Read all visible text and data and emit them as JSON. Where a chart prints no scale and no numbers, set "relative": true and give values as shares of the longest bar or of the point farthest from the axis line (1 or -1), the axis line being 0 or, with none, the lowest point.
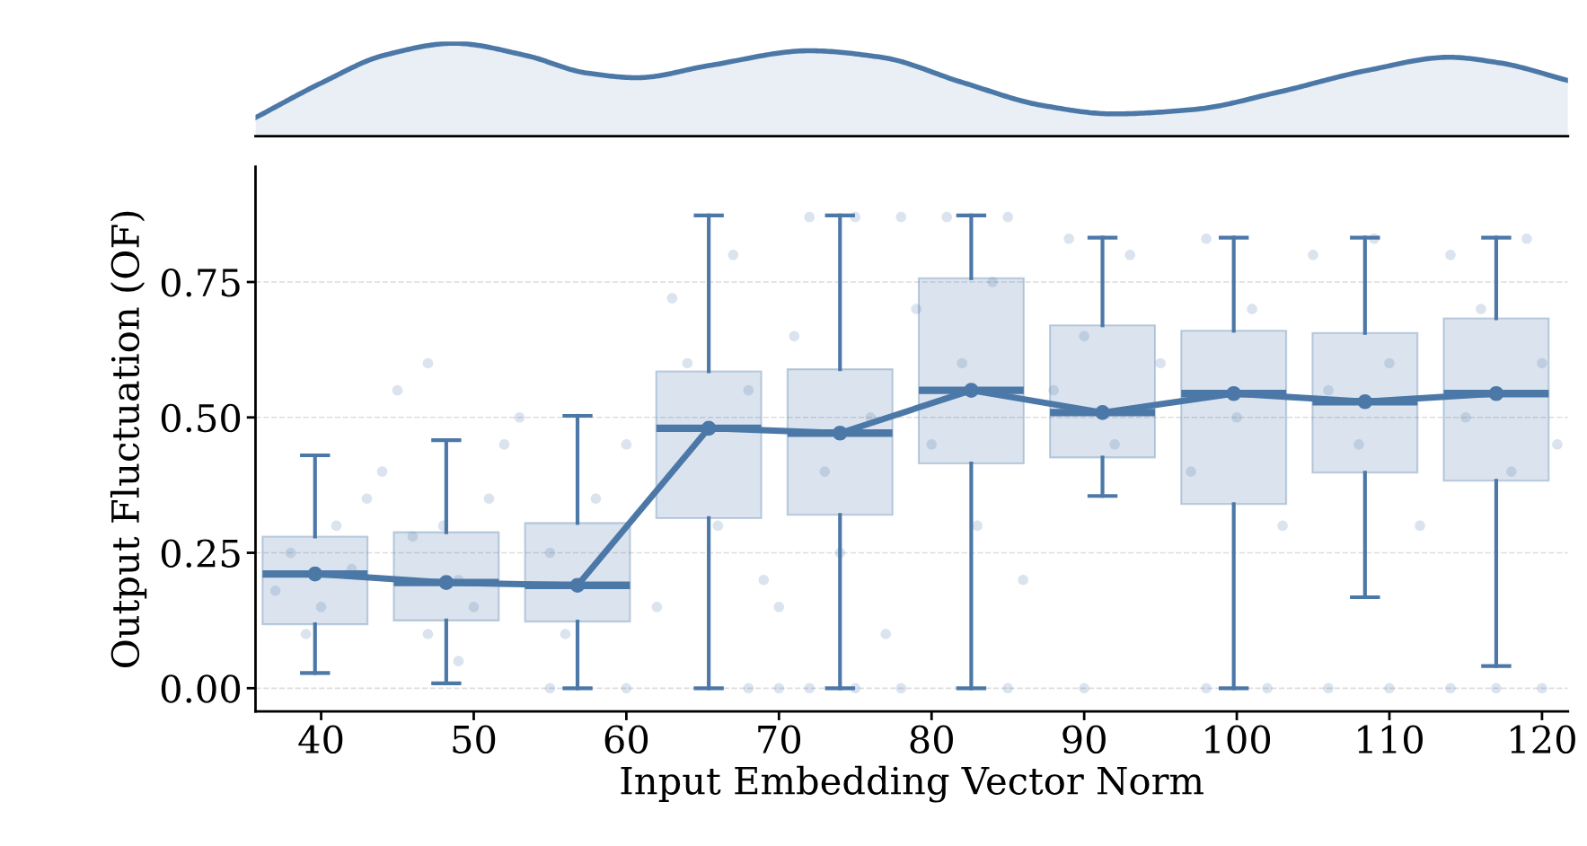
{
  "chart_data": [
    {
      "type": "area",
      "relative": true,
      "color": "#4c78a8",
      "x": [
        35.7,
        40.1,
        44.1,
        48.7,
        53.4,
        57.4,
        60.7,
        65.4,
        72,
        76.7,
        82,
        87.3,
        91.9,
        97.3,
        102.6,
        108.6,
        113.9,
        117.2,
        121.7
      ],
      "values": [
        0.2,
        0.58,
        0.87,
        1.0,
        0.87,
        0.68,
        0.63,
        0.76,
        0.92,
        0.85,
        0.58,
        0.33,
        0.24,
        0.29,
        0.47,
        0.71,
        0.85,
        0.79,
        0.6
      ],
      "xlim": [
        35.7,
        121.7
      ]
    },
    {
      "type": "box",
      "xlabel": "Input Embedding Vector Norm",
      "ylabel": "Output Fluctuation (OF)",
      "x": [
        39.6,
        48.2,
        56.8,
        65.4,
        74,
        82.6,
        91.2,
        99.8,
        108.4,
        117
      ],
      "color": "#4c78a8",
      "boxes": [
        {
          "low": 0.028,
          "q1": 0.118,
          "median": 0.211,
          "q3": 0.28,
          "high": 0.43
        },
        {
          "low": 0.009,
          "q1": 0.125,
          "median": 0.195,
          "q3": 0.288,
          "high": 0.458
        },
        {
          "low": 0,
          "q1": 0.123,
          "median": 0.19,
          "q3": 0.305,
          "high": 0.503
        },
        {
          "low": 0,
          "q1": 0.314,
          "median": 0.48,
          "q3": 0.585,
          "high": 0.873
        },
        {
          "low": 0,
          "q1": 0.32,
          "median": 0.471,
          "q3": 0.589,
          "high": 0.873
        },
        {
          "low": 0,
          "q1": 0.415,
          "median": 0.55,
          "q3": 0.757,
          "high": 0.873
        },
        {
          "low": 0.355,
          "q1": 0.426,
          "median": 0.509,
          "q3": 0.67,
          "high": 0.832
        },
        {
          "low": 0,
          "q1": 0.34,
          "median": 0.544,
          "q3": 0.66,
          "high": 0.832
        },
        {
          "low": 0.168,
          "q1": 0.398,
          "median": 0.529,
          "q3": 0.656,
          "high": 0.832
        },
        {
          "low": 0.041,
          "q1": 0.383,
          "median": 0.544,
          "q3": 0.683,
          "high": 0.832
        }
      ],
      "series": [
        {
          "type": "line",
          "color": "#4c78a8",
          "marker": "circle",
          "line_style": "solid",
          "x": [
            39.6,
            48.2,
            56.8,
            65.4,
            74,
            82.6,
            91.2,
            99.8,
            108.4,
            117
          ],
          "values": [
            0.211,
            0.195,
            0.19,
            0.48,
            0.471,
            0.55,
            0.509,
            0.544,
            0.529,
            0.544
          ]
        },
        {
          "type": "scatter",
          "color": "#4c78a8",
          "marker": "circle",
          "x": [
            37,
            38,
            40,
            41,
            42,
            39,
            43,
            44,
            45,
            46,
            47,
            48,
            49,
            50,
            51,
            52,
            47,
            49,
            53,
            55,
            56,
            58,
            60,
            62,
            63,
            64,
            66,
            67,
            68,
            69,
            70,
            71,
            72,
            73,
            74,
            75,
            76,
            77,
            78,
            79,
            80,
            81,
            82,
            83,
            84,
            85,
            86,
            88,
            89,
            90,
            92,
            93,
            95,
            97,
            98,
            100,
            101,
            103,
            105,
            106,
            108,
            109,
            110,
            112,
            114,
            115,
            116,
            118,
            119,
            120,
            121,
            55,
            60,
            68,
            70,
            72,
            75,
            78,
            85,
            90,
            98,
            102,
            106,
            110,
            114,
            117,
            120
          ],
          "values": [
            0.18,
            0.25,
            0.15,
            0.3,
            0.22,
            0.1,
            0.35,
            0.4,
            0.55,
            0.28,
            0.6,
            0.3,
            0.2,
            0.15,
            0.35,
            0.45,
            0.1,
            0.05,
            0.5,
            0.25,
            0.1,
            0.35,
            0.45,
            0.15,
            0.72,
            0.6,
            0.3,
            0.8,
            0.55,
            0.2,
            0.15,
            0.65,
            0.87,
            0.4,
            0.25,
            0.87,
            0.5,
            0.1,
            0.87,
            0.7,
            0.45,
            0.87,
            0.6,
            0.3,
            0.75,
            0.87,
            0.2,
            0.55,
            0.83,
            0.65,
            0.45,
            0.8,
            0.6,
            0.4,
            0.83,
            0.5,
            0.7,
            0.3,
            0.8,
            0.55,
            0.45,
            0.83,
            0.6,
            0.3,
            0.8,
            0.5,
            0.7,
            0.4,
            0.83,
            0.6,
            0.45,
            0,
            0,
            0,
            0,
            0,
            0,
            0,
            0,
            0,
            0,
            0,
            0,
            0,
            0,
            0,
            0
          ]
        }
      ],
      "xlim": [
        35.7,
        121.7
      ],
      "xticks": [
        40,
        50,
        60,
        70,
        80,
        90,
        100,
        110,
        120
      ],
      "ylim": [
        -0.043,
        0.963
      ],
      "yticks": [
        {
          "value": 0,
          "label": "0.00"
        },
        {
          "value": 0.25,
          "label": "0.25"
        },
        {
          "value": 0.5,
          "label": "0.50"
        },
        {
          "value": 0.75,
          "label": "0.75"
        }
      ],
      "grid": "y"
    }
  ]
}
